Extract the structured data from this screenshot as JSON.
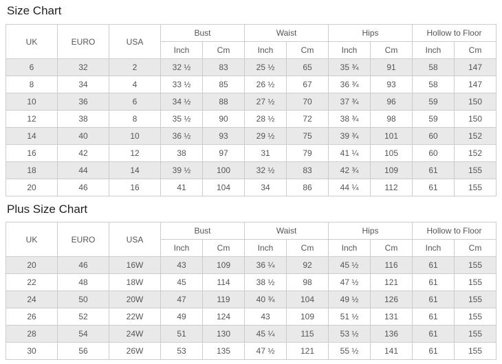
{
  "colors": {
    "background": "#ffffff",
    "border": "#cccccc",
    "stripe": "#e9e9e9",
    "text": "#555555",
    "title": "#1f1f1f"
  },
  "tables": [
    {
      "title": "Size Chart",
      "base_columns": [
        "UK",
        "EURO",
        "USA"
      ],
      "groups": [
        "Bust",
        "Waist",
        "Hips",
        "Hollow to Floor"
      ],
      "units": [
        "Inch",
        "Cm"
      ],
      "rows": [
        [
          "6",
          "32",
          "2",
          "32 ½",
          "83",
          "25 ½",
          "65",
          "35 ¾",
          "91",
          "58",
          "147"
        ],
        [
          "8",
          "34",
          "4",
          "33 ½",
          "85",
          "26 ½",
          "67",
          "36 ¾",
          "93",
          "58",
          "147"
        ],
        [
          "10",
          "36",
          "6",
          "34 ½",
          "88",
          "27 ½",
          "70",
          "37 ¾",
          "96",
          "59",
          "150"
        ],
        [
          "12",
          "38",
          "8",
          "35 ½",
          "90",
          "28 ½",
          "72",
          "38 ¾",
          "98",
          "59",
          "150"
        ],
        [
          "14",
          "40",
          "10",
          "36 ½",
          "93",
          "29 ½",
          "75",
          "39 ¾",
          "101",
          "60",
          "152"
        ],
        [
          "16",
          "42",
          "12",
          "38",
          "97",
          "31",
          "79",
          "41 ¼",
          "105",
          "60",
          "152"
        ],
        [
          "18",
          "44",
          "14",
          "39 ½",
          "100",
          "32 ½",
          "83",
          "42 ¾",
          "109",
          "61",
          "155"
        ],
        [
          "20",
          "46",
          "16",
          "41",
          "104",
          "34",
          "86",
          "44 ¼",
          "112",
          "61",
          "155"
        ]
      ]
    },
    {
      "title": "Plus Size Chart",
      "base_columns": [
        "UK",
        "EURO",
        "USA"
      ],
      "groups": [
        "Bust",
        "Waist",
        "Hips",
        "Hollow to Floor"
      ],
      "units": [
        "Inch",
        "Cm"
      ],
      "rows": [
        [
          "20",
          "46",
          "16W",
          "43",
          "109",
          "36 ¼",
          "92",
          "45 ½",
          "116",
          "61",
          "155"
        ],
        [
          "22",
          "48",
          "18W",
          "45",
          "114",
          "38 ½",
          "98",
          "47 ½",
          "121",
          "61",
          "155"
        ],
        [
          "24",
          "50",
          "20W",
          "47",
          "119",
          "40 ¾",
          "104",
          "49 ½",
          "126",
          "61",
          "155"
        ],
        [
          "26",
          "52",
          "22W",
          "49",
          "124",
          "43",
          "109",
          "51 ½",
          "131",
          "61",
          "155"
        ],
        [
          "28",
          "54",
          "24W",
          "51",
          "130",
          "45 ¼",
          "115",
          "53 ½",
          "136",
          "61",
          "155"
        ],
        [
          "30",
          "56",
          "26W",
          "53",
          "135",
          "47 ½",
          "121",
          "55 ½",
          "141",
          "61",
          "155"
        ]
      ]
    }
  ]
}
